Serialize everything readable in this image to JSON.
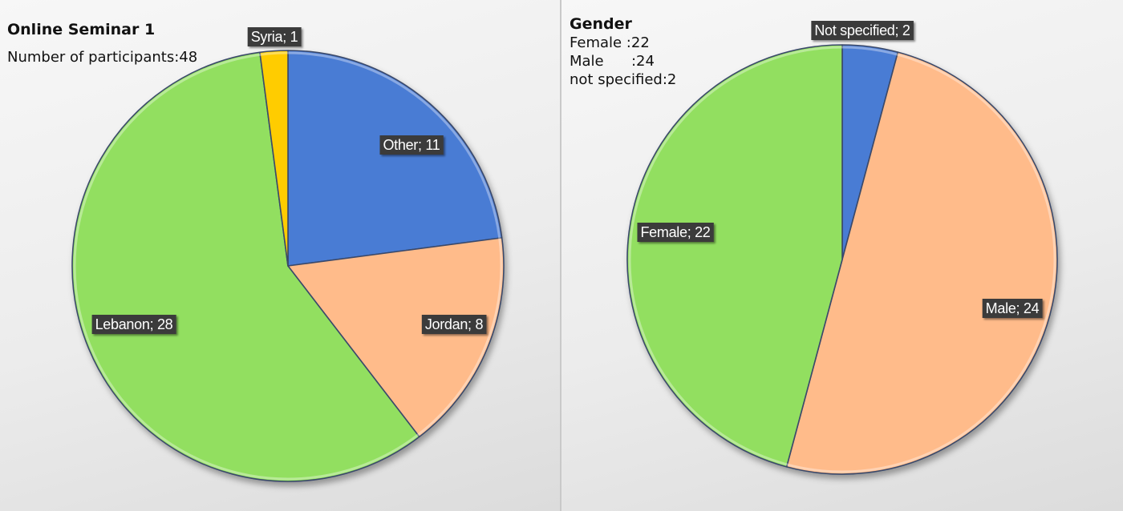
{
  "chart_data": [
    {
      "type": "pie",
      "title": "Online Seminar 1",
      "subtitle": "Number of participants:48",
      "slices": [
        {
          "label": "Other",
          "value": 11,
          "data_label": "Other; 11",
          "color": "#4a7bd4"
        },
        {
          "label": "Jordan",
          "value": 8,
          "data_label": "Jordan; 8",
          "color": "#ffbb8a"
        },
        {
          "label": "Lebanon",
          "value": 28,
          "data_label": "Lebanon; 28",
          "color": "#92df60"
        },
        {
          "label": "Syria",
          "value": 1,
          "data_label": "Syria; 1",
          "color": "#ffcc00"
        }
      ]
    },
    {
      "type": "pie",
      "title": "Gender",
      "text_lines": [
        "Female :22",
        "Male      :24",
        "not specified:2"
      ],
      "slices": [
        {
          "label": "Not specified",
          "value": 2,
          "data_label": "Not specified; 2",
          "color": "#4a7bd4"
        },
        {
          "label": "Male",
          "value": 24,
          "data_label": "Male; 24",
          "color": "#ffbb8a"
        },
        {
          "label": "Female",
          "value": 22,
          "data_label": "Female; 22",
          "color": "#92df60"
        }
      ]
    }
  ]
}
